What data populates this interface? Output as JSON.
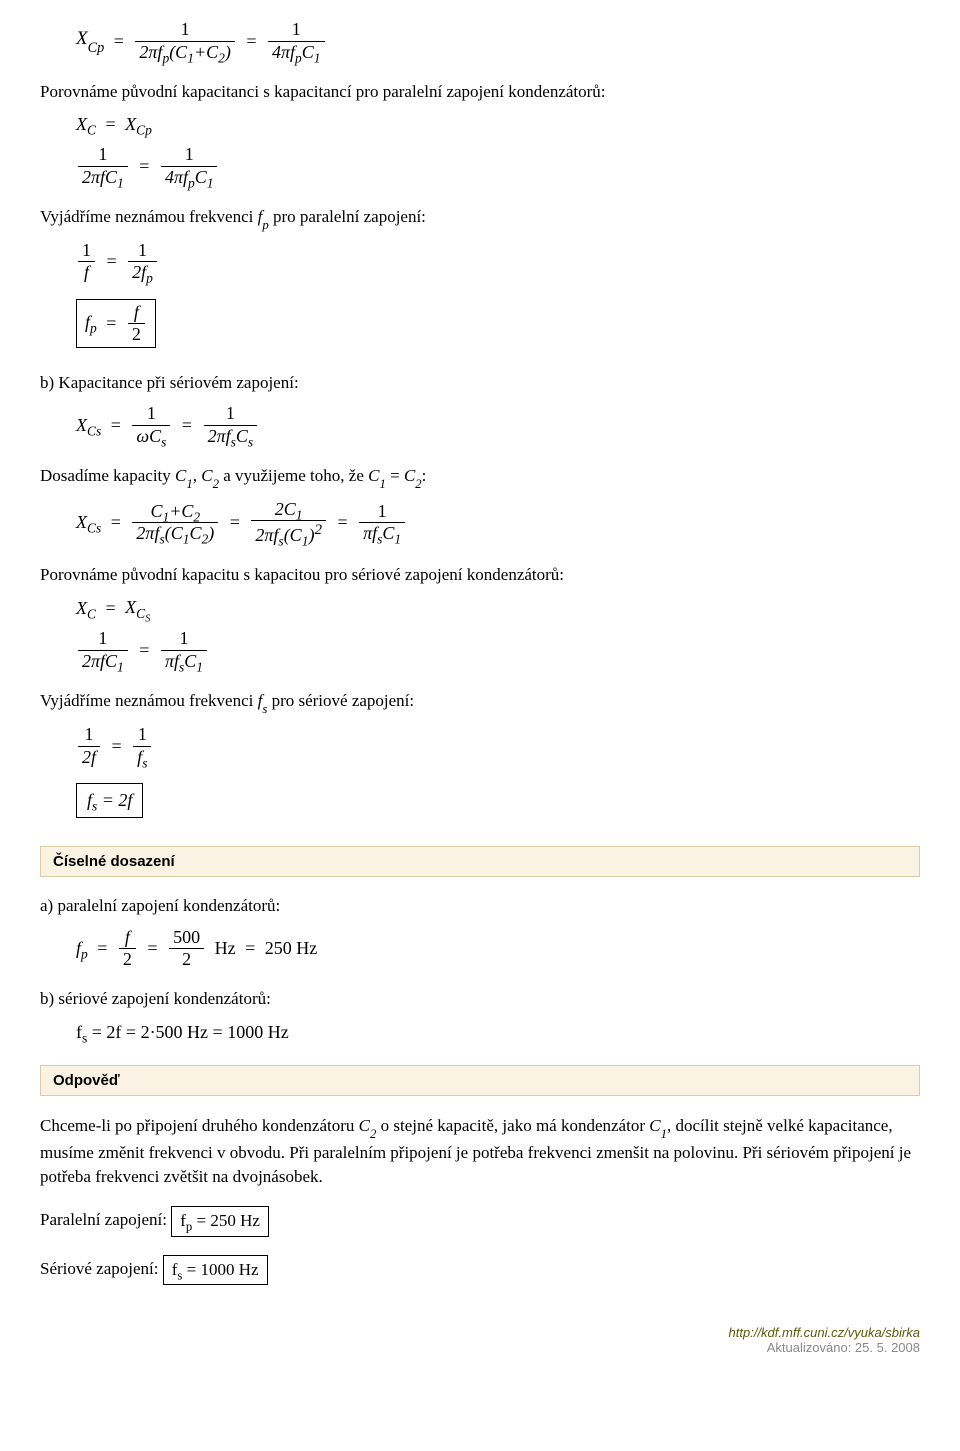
{
  "top_formula": {
    "lhs_var": "X",
    "lhs_sub": "Cp",
    "rhs1_num": "1",
    "rhs1_den": "2πf<sub>p</sub>(C<sub>1</sub>+C<sub>2</sub>)",
    "rhs2_num": "1",
    "rhs2_den": "4πf<sub>p</sub>C<sub>1</sub>"
  },
  "para1": "Porovnáme původní kapacitanci s kapacitancí pro paralelní zapojení kondenzátorů:",
  "f1a": {
    "l": "X<sub>C</sub>",
    "r": "X<sub>Cp</sub>"
  },
  "f1b": {
    "ln": "1",
    "ld": "2πfC<sub>1</sub>",
    "rn": "1",
    "rd": "4πf<sub>p</sub>C<sub>1</sub>"
  },
  "para2_pre": "Vyjádříme neznámou frekvenci ",
  "para2_var": "f",
  "para2_sub": "p",
  "para2_post": " pro paralelní zapojení:",
  "f2a": {
    "ln": "1",
    "ld": "f",
    "rn": "1",
    "rd": "2f<sub>p</sub>"
  },
  "f2b_boxed": {
    "l": "f<sub>p</sub>",
    "rn": "f",
    "rd": "2"
  },
  "para3": "b) Kapacitance při sériovém zapojení:",
  "f3": {
    "l": "X<sub>Cs</sub>",
    "m_n": "1",
    "m_d": "ωC<sub>s</sub>",
    "r_n": "1",
    "r_d": "2πf<sub>s</sub>C<sub>s</sub>"
  },
  "para4_pre": "Dosadíme kapacity ",
  "para4_c1": "C",
  "para4_c1s": "1",
  "para4_mid1": ", ",
  "para4_c2": "C",
  "para4_c2s": "2",
  "para4_mid2": " a využijeme toho, že ",
  "para4_c1b": "C",
  "para4_c1bs": "1",
  "para4_eq": " = ",
  "para4_c2b": "C",
  "para4_c2bs": "2",
  "para4_post": ":",
  "f4": {
    "l": "X<sub>Cs</sub>",
    "a_n": "C<sub>1</sub>+C<sub>2</sub>",
    "a_d": "2πf<sub>s</sub>(C<sub>1</sub>C<sub>2</sub>)",
    "b_n": "2C<sub>1</sub>",
    "b_d": "2πf<sub>s</sub>(C<sub>1</sub>)<sup>2</sup>",
    "c_n": "1",
    "c_d": "πf<sub>s</sub>C<sub>1</sub>"
  },
  "para5": "Porovnáme původní kapacitu s kapacitou pro sériové zapojení kondenzátorů:",
  "f5a": {
    "l": "X<sub>C</sub>",
    "r": "X<sub>C<sub>S</sub></sub>"
  },
  "f5b": {
    "ln": "1",
    "ld": "2πfC<sub>1</sub>",
    "rn": "1",
    "rd": "πf<sub>s</sub>C<sub>1</sub>"
  },
  "para6_pre": "Vyjádříme neznámou frekvenci ",
  "para6_var": "f",
  "para6_sub": "s",
  "para6_post": " pro sériové zapojení:",
  "f6a": {
    "ln": "1",
    "ld": "2f",
    "rn": "1",
    "rd": "f<sub>s</sub>"
  },
  "f6b_boxed": "f<sub>s</sub> = 2f",
  "section1": "Číselné dosazení",
  "sec1_a": "a) paralelní zapojení kondenzátorů:",
  "sec1_a_formula": {
    "l": "f<sub>p</sub>",
    "m_n": "f",
    "m_d": "2",
    "v_n": "500",
    "v_d": "2",
    "unit": "Hz",
    "res": "250 Hz"
  },
  "sec1_b": "b) sériové zapojení kondenzátorů:",
  "sec1_b_formula": "f<sub>s</sub> = 2f = 2·500 Hz = 1000 Hz",
  "section2": "Odpověď",
  "odpoved_pre": "Chceme-li po připojení druhého kondenzátoru ",
  "odpoved_c2": "C",
  "odpoved_c2s": "2",
  "odpoved_mid": " o stejné kapacitě, jako má kondenzátor ",
  "odpoved_c1": "C",
  "odpoved_c1s": "1",
  "odpoved_post": ", docílit stejně velké kapacitance, musíme změnit frekvenci v obvodu. Při paralelním připojení je potřeba frekvenci zmenšit na polovinu. Při sériovém připojení je potřeba frekvenci zvětšit na dvojnásobek.",
  "par_zap_label": "Paralelní zapojení: ",
  "par_zap_boxed": "f<sub>p</sub> = 250 Hz",
  "ser_zap_label": "Sériové zapojení: ",
  "ser_zap_boxed": "f<sub>s</sub> = 1000 Hz",
  "footer_link": "http://kdf.mff.cuni.cz/vyuka/sbirka",
  "footer_updated": "Aktualizováno: 25. 5. 2008"
}
